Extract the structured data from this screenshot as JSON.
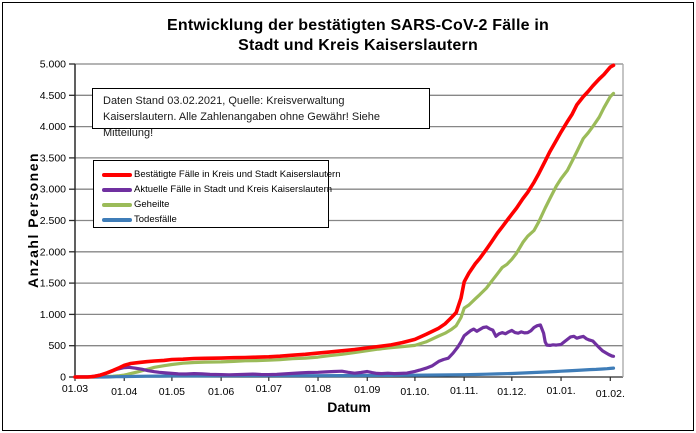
{
  "figure": {
    "background": "#ffffff",
    "border_color": "#000000",
    "gridline_color": "#878787",
    "axis_color": "#2b2b2b",
    "plot_border_color": "#a6a6a6"
  },
  "title": "Entwicklung der bestätigten SARS-CoV-2 Fälle in\nStadt und Kreis Kaiserslautern",
  "annotation": {
    "line1": "Daten Stand 03.02.2021, Quelle: Kreisverwaltung",
    "line2": "Kaiserslautern. Alle Zahlenangaben ohne Gewähr! Siehe Mitteilung!"
  },
  "chart_data": {
    "type": "line",
    "title": "Entwicklung der bestätigten SARS-CoV-2 Fälle in Stadt und Kreis Kaiserslautern",
    "xlabel": "Datum",
    "ylabel": "Anzahl Personen",
    "x_unit": "days since 01.03.2020",
    "xlim": [
      0,
      345
    ],
    "ylim": [
      0,
      5000
    ],
    "grid": "horizontal",
    "legend_position": "inside-upper-left",
    "x_ticks": [
      {
        "label": "01.03",
        "day": 0
      },
      {
        "label": "01.04",
        "day": 31
      },
      {
        "label": "01.05",
        "day": 61
      },
      {
        "label": "01.06",
        "day": 92
      },
      {
        "label": "01.07",
        "day": 122
      },
      {
        "label": "01.08",
        "day": 153
      },
      {
        "label": "01.09",
        "day": 184
      },
      {
        "label": "01.10.",
        "day": 214
      },
      {
        "label": "01.11.",
        "day": 245
      },
      {
        "label": "01.12.",
        "day": 275
      },
      {
        "label": "01.01.",
        "day": 306
      },
      {
        "label": "01.02.",
        "day": 337
      }
    ],
    "y_ticks": [
      {
        "label": "0",
        "value": 0
      },
      {
        "label": "500",
        "value": 500
      },
      {
        "label": "1.000",
        "value": 1000
      },
      {
        "label": "1.500",
        "value": 1500
      },
      {
        "label": "2.000",
        "value": 2000
      },
      {
        "label": "2.500",
        "value": 2500
      },
      {
        "label": "3.000",
        "value": 3000
      },
      {
        "label": "3.500",
        "value": 3500
      },
      {
        "label": "4.000",
        "value": 4000
      },
      {
        "label": "4.500",
        "value": 4500
      },
      {
        "label": "5.000",
        "value": 5000
      }
    ],
    "series": [
      {
        "name": "Bestätigte Fälle in Kreis und Stadt Kaiserslautern",
        "color": "#ff0000",
        "stroke_width": 3.6,
        "points": [
          [
            0,
            0
          ],
          [
            8,
            0
          ],
          [
            12,
            10
          ],
          [
            16,
            30
          ],
          [
            20,
            65
          ],
          [
            24,
            105
          ],
          [
            28,
            150
          ],
          [
            31,
            185
          ],
          [
            35,
            215
          ],
          [
            40,
            230
          ],
          [
            45,
            245
          ],
          [
            50,
            255
          ],
          [
            56,
            265
          ],
          [
            61,
            280
          ],
          [
            68,
            285
          ],
          [
            75,
            295
          ],
          [
            82,
            298
          ],
          [
            92,
            302
          ],
          [
            100,
            308
          ],
          [
            107,
            312
          ],
          [
            114,
            316
          ],
          [
            122,
            322
          ],
          [
            129,
            332
          ],
          [
            137,
            348
          ],
          [
            145,
            362
          ],
          [
            153,
            382
          ],
          [
            160,
            398
          ],
          [
            168,
            418
          ],
          [
            176,
            440
          ],
          [
            184,
            465
          ],
          [
            191,
            487
          ],
          [
            199,
            512
          ],
          [
            206,
            550
          ],
          [
            214,
            600
          ],
          [
            221,
            680
          ],
          [
            229,
            780
          ],
          [
            233,
            850
          ],
          [
            237,
            950
          ],
          [
            240,
            1030
          ],
          [
            243,
            1260
          ],
          [
            245,
            1520
          ],
          [
            248,
            1660
          ],
          [
            252,
            1810
          ],
          [
            255,
            1900
          ],
          [
            259,
            2040
          ],
          [
            262,
            2150
          ],
          [
            266,
            2300
          ],
          [
            269,
            2400
          ],
          [
            272,
            2500
          ],
          [
            275,
            2600
          ],
          [
            278,
            2700
          ],
          [
            282,
            2850
          ],
          [
            285,
            2950
          ],
          [
            289,
            3110
          ],
          [
            292,
            3250
          ],
          [
            296,
            3450
          ],
          [
            299,
            3600
          ],
          [
            303,
            3780
          ],
          [
            306,
            3915
          ],
          [
            310,
            4080
          ],
          [
            313,
            4200
          ],
          [
            316,
            4350
          ],
          [
            320,
            4480
          ],
          [
            323,
            4560
          ],
          [
            326,
            4650
          ],
          [
            330,
            4760
          ],
          [
            333,
            4830
          ],
          [
            337,
            4950
          ],
          [
            339,
            4980
          ]
        ]
      },
      {
        "name": "Aktuelle Fälle in Stadt und Kreis Kaiserslautern",
        "color": "#7030a0",
        "stroke_width": 3.2,
        "points": [
          [
            0,
            0
          ],
          [
            10,
            5
          ],
          [
            14,
            20
          ],
          [
            18,
            45
          ],
          [
            22,
            80
          ],
          [
            26,
            120
          ],
          [
            31,
            150
          ],
          [
            34,
            155
          ],
          [
            38,
            140
          ],
          [
            42,
            125
          ],
          [
            46,
            100
          ],
          [
            50,
            85
          ],
          [
            53,
            75
          ],
          [
            57,
            65
          ],
          [
            61,
            58
          ],
          [
            65,
            50
          ],
          [
            70,
            48
          ],
          [
            75,
            55
          ],
          [
            80,
            50
          ],
          [
            85,
            42
          ],
          [
            92,
            38
          ],
          [
            97,
            35
          ],
          [
            102,
            38
          ],
          [
            107,
            42
          ],
          [
            112,
            46
          ],
          [
            117,
            40
          ],
          [
            122,
            38
          ],
          [
            127,
            42
          ],
          [
            132,
            50
          ],
          [
            137,
            58
          ],
          [
            142,
            65
          ],
          [
            147,
            72
          ],
          [
            153,
            75
          ],
          [
            158,
            82
          ],
          [
            163,
            88
          ],
          [
            168,
            92
          ],
          [
            172,
            75
          ],
          [
            176,
            60
          ],
          [
            180,
            72
          ],
          [
            184,
            88
          ],
          [
            187,
            70
          ],
          [
            190,
            58
          ],
          [
            193,
            55
          ],
          [
            197,
            60
          ],
          [
            201,
            55
          ],
          [
            205,
            58
          ],
          [
            209,
            62
          ],
          [
            214,
            90
          ],
          [
            217,
            110
          ],
          [
            221,
            140
          ],
          [
            225,
            180
          ],
          [
            229,
            250
          ],
          [
            232,
            280
          ],
          [
            235,
            300
          ],
          [
            238,
            380
          ],
          [
            241,
            480
          ],
          [
            243,
            560
          ],
          [
            245,
            660
          ],
          [
            247,
            700
          ],
          [
            249,
            740
          ],
          [
            251,
            765
          ],
          [
            253,
            730
          ],
          [
            255,
            760
          ],
          [
            257,
            790
          ],
          [
            259,
            800
          ],
          [
            261,
            770
          ],
          [
            263,
            750
          ],
          [
            265,
            650
          ],
          [
            267,
            690
          ],
          [
            269,
            710
          ],
          [
            271,
            690
          ],
          [
            273,
            720
          ],
          [
            275,
            745
          ],
          [
            277,
            710
          ],
          [
            279,
            700
          ],
          [
            281,
            720
          ],
          [
            283,
            705
          ],
          [
            285,
            710
          ],
          [
            287,
            740
          ],
          [
            289,
            790
          ],
          [
            291,
            820
          ],
          [
            293,
            830
          ],
          [
            295,
            700
          ],
          [
            296,
            560
          ],
          [
            297,
            510
          ],
          [
            299,
            505
          ],
          [
            301,
            515
          ],
          [
            303,
            510
          ],
          [
            306,
            520
          ],
          [
            308,
            560
          ],
          [
            310,
            600
          ],
          [
            312,
            640
          ],
          [
            314,
            650
          ],
          [
            316,
            620
          ],
          [
            318,
            635
          ],
          [
            320,
            648
          ],
          [
            322,
            610
          ],
          [
            324,
            590
          ],
          [
            326,
            575
          ],
          [
            328,
            520
          ],
          [
            330,
            470
          ],
          [
            332,
            420
          ],
          [
            334,
            390
          ],
          [
            336,
            360
          ],
          [
            338,
            335
          ],
          [
            339,
            330
          ]
        ]
      },
      {
        "name": "Geheilte",
        "color": "#9bbb59",
        "stroke_width": 3.2,
        "points": [
          [
            0,
            0
          ],
          [
            14,
            0
          ],
          [
            18,
            5
          ],
          [
            24,
            12
          ],
          [
            28,
            20
          ],
          [
            31,
            30
          ],
          [
            35,
            55
          ],
          [
            40,
            85
          ],
          [
            45,
            120
          ],
          [
            50,
            155
          ],
          [
            56,
            180
          ],
          [
            61,
            200
          ],
          [
            68,
            220
          ],
          [
            75,
            232
          ],
          [
            82,
            238
          ],
          [
            92,
            242
          ],
          [
            100,
            250
          ],
          [
            107,
            258
          ],
          [
            114,
            262
          ],
          [
            122,
            268
          ],
          [
            129,
            278
          ],
          [
            137,
            292
          ],
          [
            145,
            302
          ],
          [
            153,
            318
          ],
          [
            160,
            340
          ],
          [
            168,
            362
          ],
          [
            176,
            390
          ],
          [
            184,
            420
          ],
          [
            191,
            445
          ],
          [
            199,
            468
          ],
          [
            206,
            485
          ],
          [
            214,
            505
          ],
          [
            221,
            560
          ],
          [
            229,
            655
          ],
          [
            233,
            700
          ],
          [
            237,
            760
          ],
          [
            240,
            820
          ],
          [
            243,
            950
          ],
          [
            245,
            1100
          ],
          [
            248,
            1150
          ],
          [
            252,
            1250
          ],
          [
            255,
            1320
          ],
          [
            259,
            1420
          ],
          [
            262,
            1520
          ],
          [
            266,
            1650
          ],
          [
            269,
            1750
          ],
          [
            272,
            1800
          ],
          [
            275,
            1880
          ],
          [
            278,
            1980
          ],
          [
            282,
            2150
          ],
          [
            285,
            2250
          ],
          [
            289,
            2340
          ],
          [
            292,
            2480
          ],
          [
            296,
            2700
          ],
          [
            299,
            2850
          ],
          [
            303,
            3050
          ],
          [
            306,
            3170
          ],
          [
            310,
            3300
          ],
          [
            313,
            3450
          ],
          [
            316,
            3600
          ],
          [
            320,
            3810
          ],
          [
            323,
            3900
          ],
          [
            326,
            4000
          ],
          [
            330,
            4150
          ],
          [
            333,
            4300
          ],
          [
            337,
            4480
          ],
          [
            339,
            4530
          ]
        ]
      },
      {
        "name": "Todesfälle",
        "color": "#3f7db8",
        "stroke_width": 3.2,
        "points": [
          [
            0,
            0
          ],
          [
            18,
            0
          ],
          [
            22,
            2
          ],
          [
            26,
            4
          ],
          [
            31,
            6
          ],
          [
            38,
            10
          ],
          [
            45,
            13
          ],
          [
            53,
            15
          ],
          [
            61,
            17
          ],
          [
            75,
            18
          ],
          [
            92,
            19
          ],
          [
            107,
            20
          ],
          [
            122,
            20
          ],
          [
            137,
            21
          ],
          [
            153,
            21
          ],
          [
            168,
            23
          ],
          [
            184,
            24
          ],
          [
            199,
            26
          ],
          [
            214,
            28
          ],
          [
            229,
            32
          ],
          [
            245,
            36
          ],
          [
            252,
            40
          ],
          [
            259,
            44
          ],
          [
            266,
            50
          ],
          [
            275,
            56
          ],
          [
            282,
            64
          ],
          [
            289,
            72
          ],
          [
            296,
            80
          ],
          [
            303,
            88
          ],
          [
            306,
            92
          ],
          [
            310,
            98
          ],
          [
            313,
            102
          ],
          [
            316,
            106
          ],
          [
            320,
            112
          ],
          [
            324,
            118
          ],
          [
            328,
            122
          ],
          [
            332,
            128
          ],
          [
            335,
            133
          ],
          [
            337,
            138
          ],
          [
            339,
            142
          ]
        ]
      }
    ]
  }
}
